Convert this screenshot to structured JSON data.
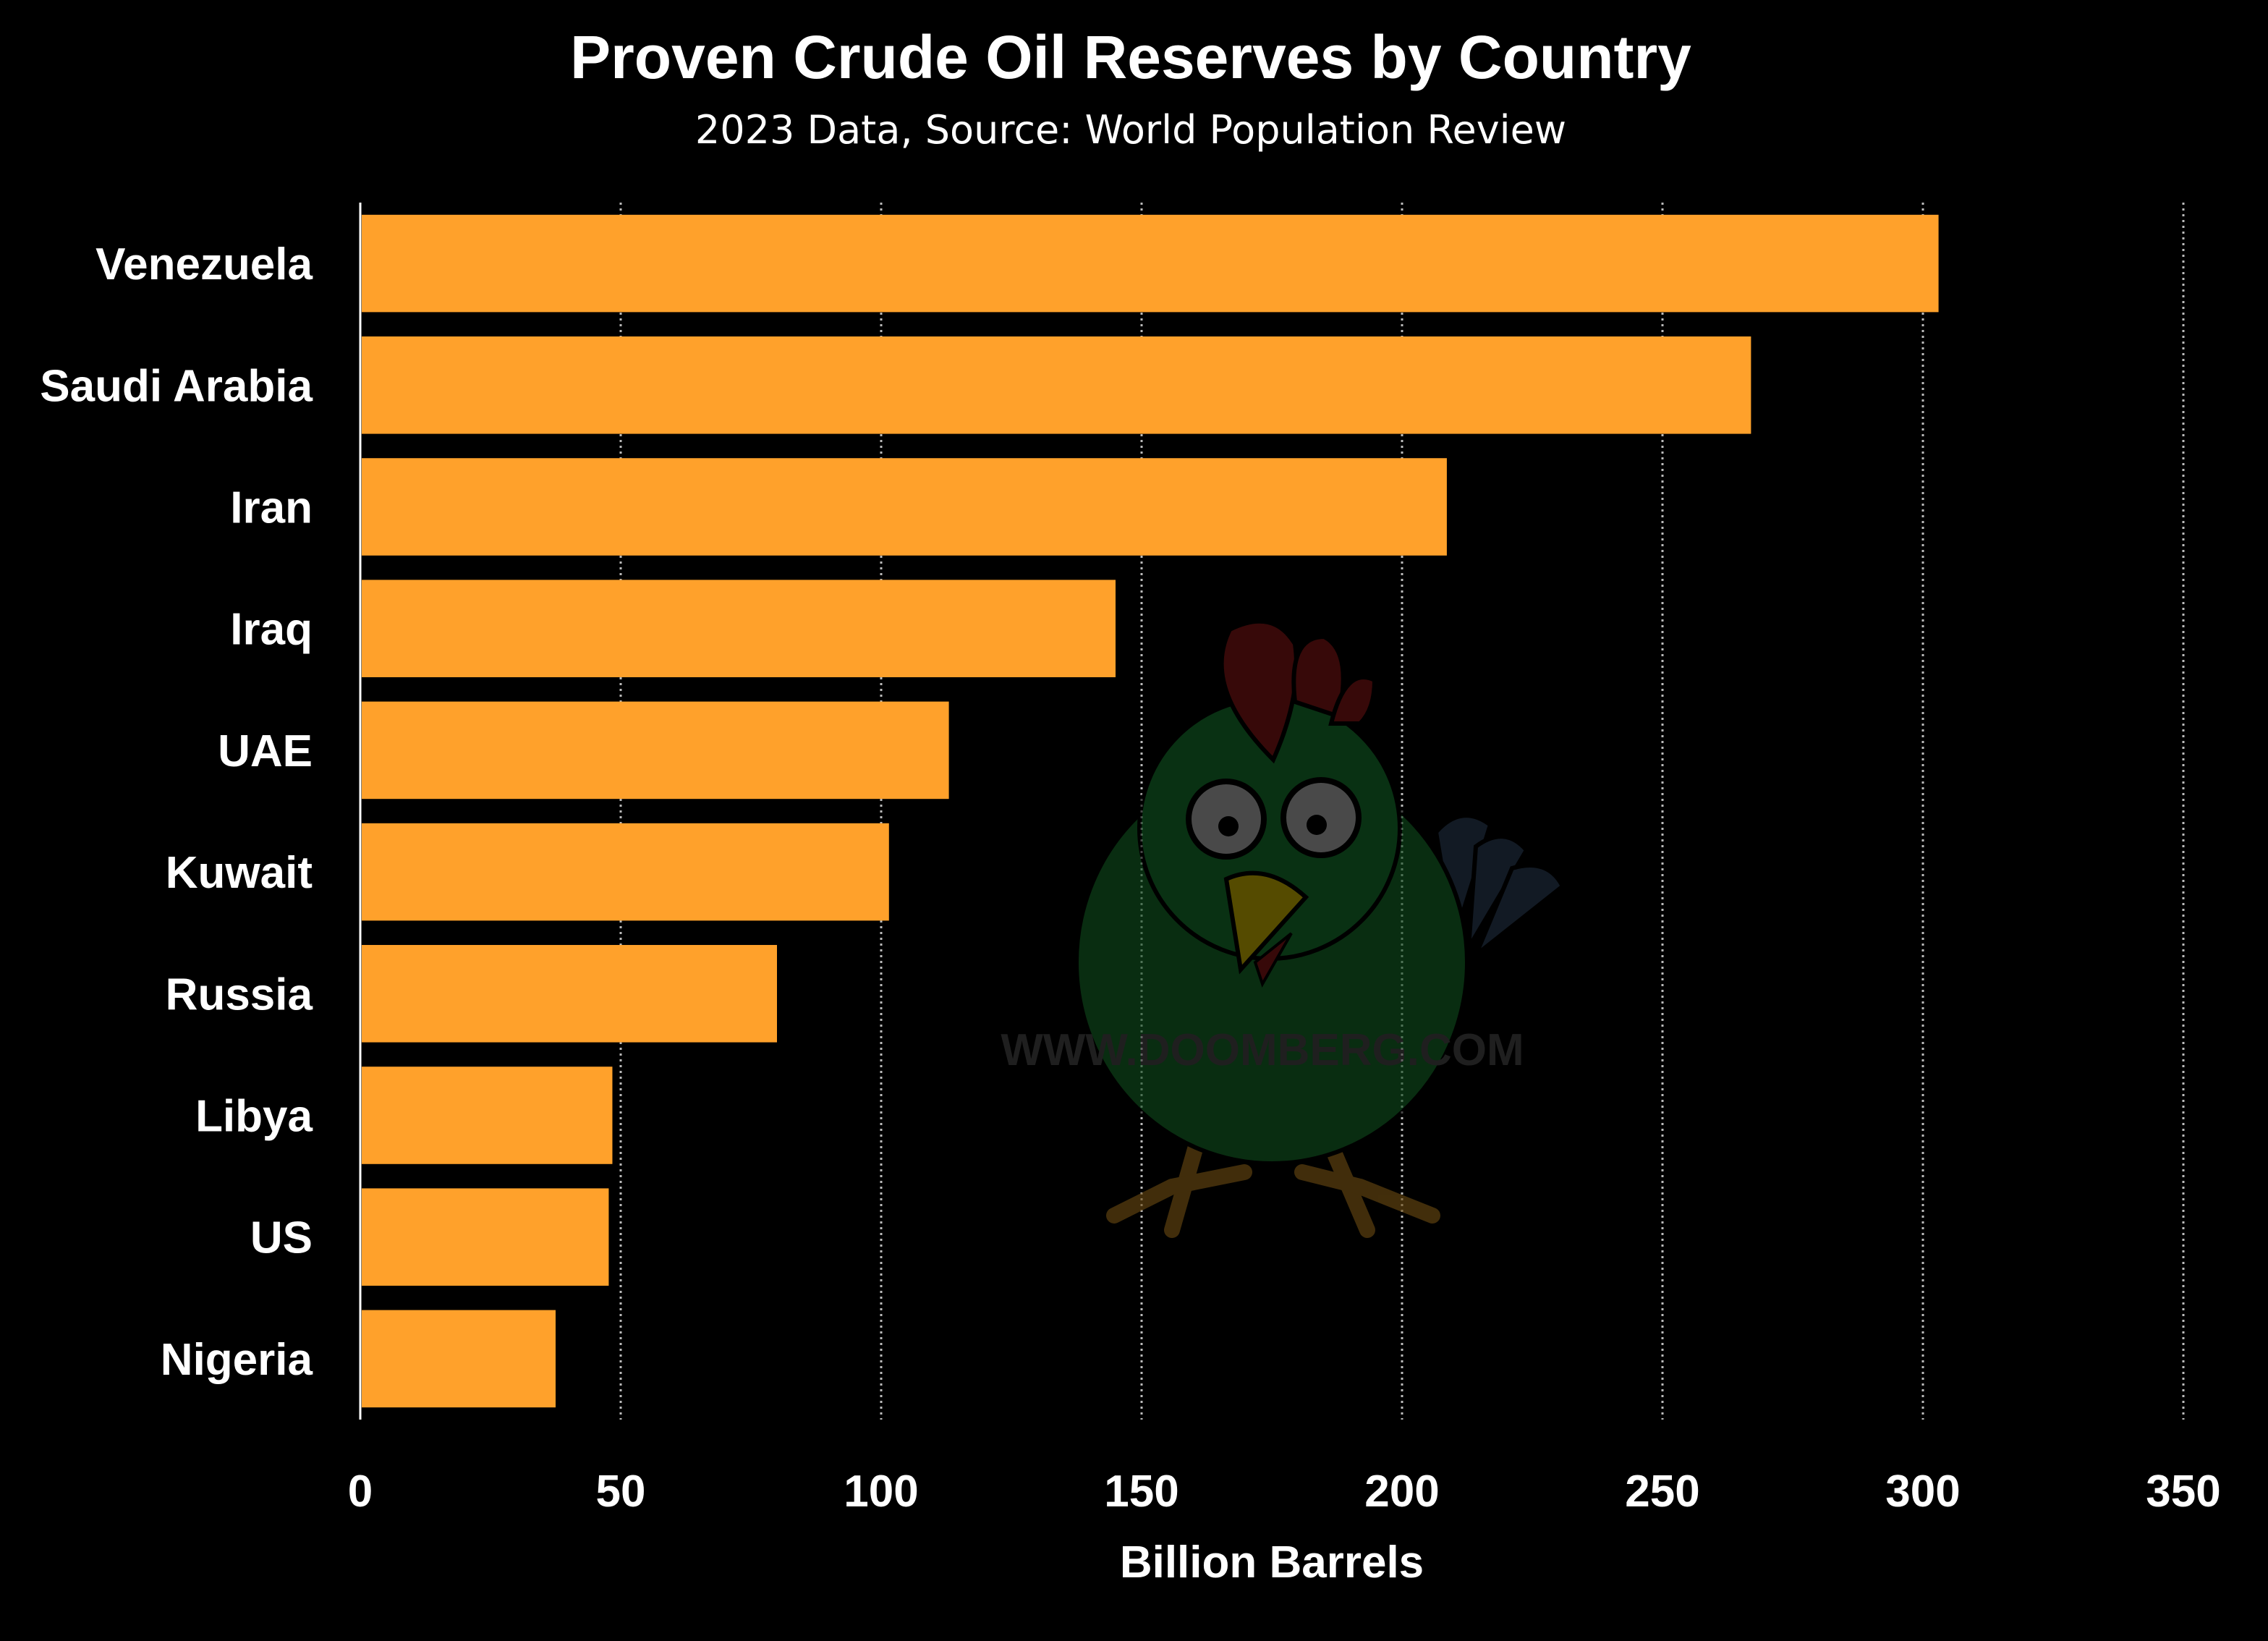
{
  "chart_data": {
    "type": "bar",
    "orientation": "horizontal",
    "title": "Proven Crude Oil Reserves by Country",
    "subtitle": "2023 Data, Source: World Population Review",
    "xlabel": "Billion Barrels",
    "ylabel": "",
    "categories": [
      "Venezuela",
      "Saudi Arabia",
      "Iran",
      "Iraq",
      "UAE",
      "Kuwait",
      "Russia",
      "Libya",
      "US",
      "Nigeria"
    ],
    "values": [
      303.0,
      267.0,
      208.6,
      145.0,
      113.0,
      101.5,
      80.0,
      48.4,
      47.7,
      37.5
    ],
    "xlim": [
      0,
      350
    ],
    "xticks": [
      0,
      50,
      100,
      150,
      200,
      250,
      300,
      350
    ],
    "grid": "vertical dotted",
    "bar_color": "#ffa12b",
    "background": "#000000",
    "watermark": "WWW.DOOMBERG.COM"
  }
}
